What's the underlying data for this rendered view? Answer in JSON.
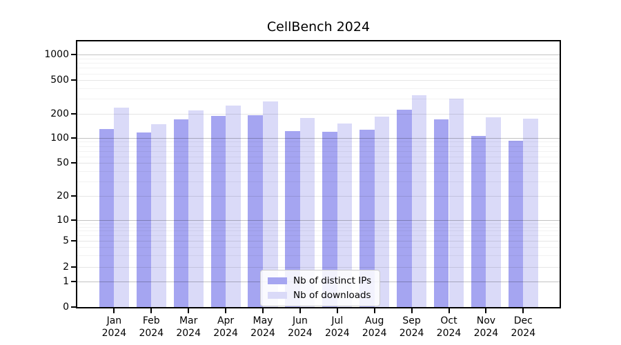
{
  "title": "CellBench 2024",
  "chart_data": {
    "type": "bar",
    "title": "CellBench 2024",
    "categories": [
      "Jan 2024",
      "Feb 2024",
      "Mar 2024",
      "Apr 2024",
      "May 2024",
      "Jun 2024",
      "Jul 2024",
      "Aug 2024",
      "Sep 2024",
      "Oct 2024",
      "Nov 2024",
      "Dec 2024"
    ],
    "series": [
      {
        "name": "Nb of distinct IPs",
        "color": "#a5a5f1",
        "values": [
          129,
          117,
          170,
          187,
          192,
          121,
          119,
          127,
          222,
          169,
          106,
          93
        ]
      },
      {
        "name": "Nb of downloads",
        "color": "#dadaf8",
        "values": [
          237,
          149,
          218,
          248,
          278,
          175,
          152,
          184,
          333,
          300,
          180,
          172
        ]
      }
    ],
    "yscale": "symlog",
    "y_ticks": [
      0,
      1,
      2,
      5,
      10,
      20,
      50,
      100,
      200,
      500,
      1000
    ],
    "ylim": [
      0,
      1440
    ],
    "xlabel": "",
    "ylabel": "",
    "grid": true,
    "legend_position": "lower center"
  }
}
